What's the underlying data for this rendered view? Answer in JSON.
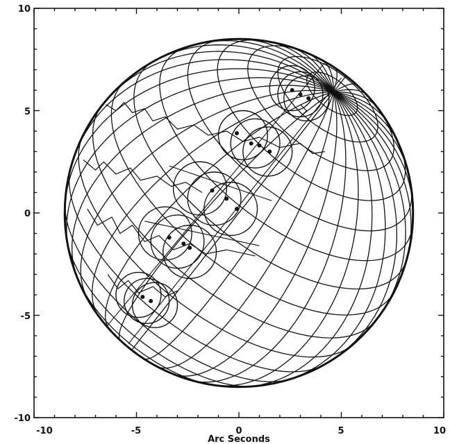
{
  "chart_data": {
    "type": "scatter",
    "title": "",
    "xlabel": "Arc Seconds",
    "ylabel": "",
    "xlim": [
      -10,
      10
    ],
    "ylim": [
      -10,
      10
    ],
    "xticks": [
      -10,
      -5,
      0,
      5,
      10
    ],
    "yticks": [
      -10,
      -5,
      0,
      5,
      10
    ],
    "xtick_labels": [
      "-10",
      "-5",
      "0",
      "5",
      "10"
    ],
    "ytick_labels": [
      "-10",
      "-5",
      "0",
      "5",
      "10"
    ],
    "grid": false,
    "legend": "none",
    "disk": {
      "center": [
        0,
        0
      ],
      "radius": 8.5
    },
    "groups": [
      {
        "center": [
          3.0,
          5.9
        ],
        "circles": [
          [
            2.6,
            6.1
          ],
          [
            3.0,
            5.8
          ],
          [
            3.3,
            5.6
          ]
        ],
        "radius": 1.1
      },
      {
        "center": [
          0.9,
          3.3
        ],
        "circles": [
          [
            0.2,
            3.8
          ],
          [
            0.8,
            3.4
          ],
          [
            1.4,
            3.0
          ]
        ],
        "radius": 1.2
      },
      {
        "center": [
          -1.1,
          0.5
        ],
        "circles": [
          [
            -1.9,
            1.2
          ],
          [
            -1.2,
            0.7
          ],
          [
            -0.4,
            0.2
          ]
        ],
        "radius": 1.3
      },
      {
        "center": [
          -3.0,
          -1.5
        ],
        "circles": [
          [
            -3.6,
            -1.0
          ],
          [
            -3.0,
            -1.4
          ],
          [
            -2.4,
            -1.9
          ]
        ],
        "radius": 1.3
      },
      {
        "center": [
          -4.6,
          -4.3
        ],
        "circles": [
          [
            -4.9,
            -4.0
          ],
          [
            -4.5,
            -4.3
          ],
          [
            -4.1,
            -4.5
          ]
        ],
        "radius": 1.1
      }
    ],
    "track_points": [
      [
        2.6,
        6.0
      ],
      [
        3.0,
        5.8
      ],
      [
        3.4,
        5.6
      ],
      [
        -0.1,
        3.9
      ],
      [
        0.6,
        3.4
      ],
      [
        1.0,
        3.3
      ],
      [
        1.5,
        3.0
      ],
      [
        -1.3,
        1.1
      ],
      [
        -0.6,
        0.7
      ],
      [
        -0.1,
        0.2
      ],
      [
        -3.4,
        -1.2
      ],
      [
        -2.7,
        -1.5
      ],
      [
        -2.4,
        -1.7
      ],
      [
        -4.7,
        -4.1
      ],
      [
        -4.3,
        -4.3
      ]
    ]
  }
}
